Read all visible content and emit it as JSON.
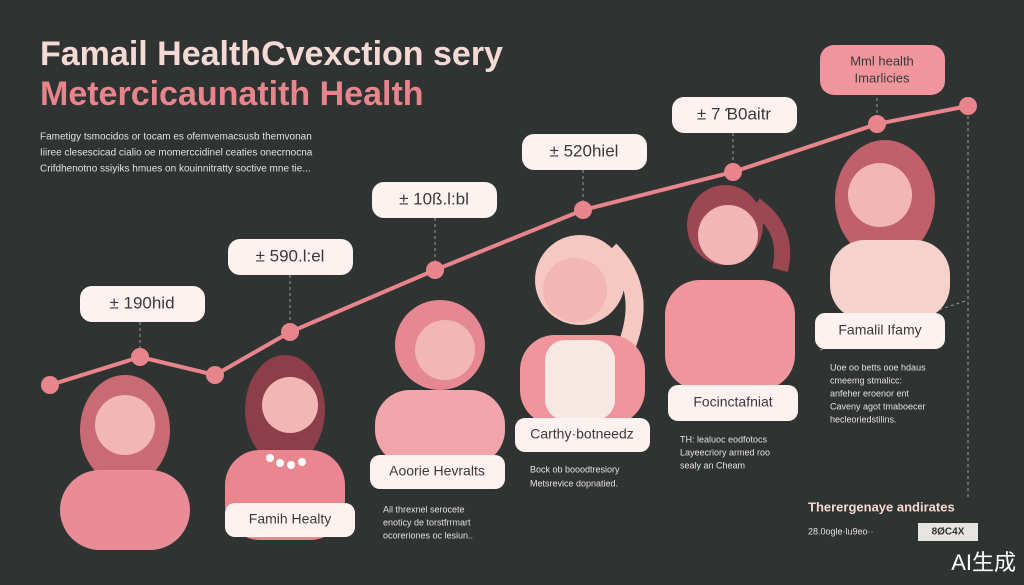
{
  "header": {
    "title": "Famail HealthCvexction sery",
    "subtitle": "Metercicaunatith Health",
    "intro": [
      "Fametigy tsmocidos or tocam es ofemvemacsusb themvonan",
      "Iiiree clesescicad cialio oe momerccidinel ceaties onecrnocna",
      "Crifdhenotno ssiyiks hmues on kouinnitratty soctive mne tie..."
    ]
  },
  "milestones": [
    {
      "label": "± 190hid"
    },
    {
      "label": "± 590.l:el"
    },
    {
      "label": "± 10ß.l:bl"
    },
    {
      "label": "± 520hiel"
    },
    {
      "label": "± 7 Ɓ0aitr"
    }
  ],
  "callout": [
    "Mml health",
    "Imarlicies"
  ],
  "figures": [
    {
      "label": "Famih Healty"
    },
    {
      "label": "Aoorie Hevralts",
      "note": [
        "Ail threxnel serocete",
        "enoticy de torstfrrmart",
        "ocoreriones oc lesiun.."
      ]
    },
    {
      "label": "Carthy·botneedz",
      "note": [
        "Bock ob booodtresiory",
        "Metsrevice dopnatied."
      ]
    },
    {
      "label": "Focinctafniat",
      "note": [
        "TH: lealuoc eodfotocs",
        "Layeecriory armed roo",
        "sealy an Cheam"
      ]
    },
    {
      "label": "Famalil Ifamy",
      "note": [
        "Uoe oo betts ooe hdaus",
        "cmeemg stmalicc:",
        "anfeher eroenor ent",
        "Caveny agot tmaboecer",
        "hecleoriedstilins."
      ]
    }
  ],
  "footer": {
    "title": "Therergenaye andirates",
    "code": "28.0ogle·lu9eo··",
    "badge": "8ØC4X",
    "watermark": "AI生成"
  }
}
